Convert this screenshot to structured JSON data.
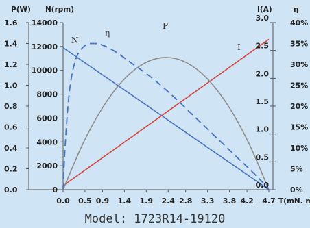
{
  "chart_data": {
    "type": "line",
    "title": "",
    "footer": "Model:  1723R14-19120",
    "x": {
      "label": "T(mN. m)",
      "ticks": [
        0.0,
        0.5,
        0.9,
        1.4,
        1.9,
        2.4,
        2.8,
        3.3,
        3.8,
        4.2,
        4.7
      ],
      "tick_labels": [
        "0.0",
        "0.5",
        "0.9",
        "1.4",
        "1.9",
        "2.4",
        "2.8",
        "3.3",
        "3.8",
        "4.2",
        "4.7"
      ],
      "range": [
        0,
        4.7
      ]
    },
    "axes": {
      "p": {
        "label": "P(W)",
        "range": [
          0,
          1.6
        ],
        "ticks": [
          0.0,
          0.2,
          0.4,
          0.6,
          0.8,
          1.0,
          1.2,
          1.4,
          1.6
        ],
        "tick_labels": [
          "0.0",
          "0.2",
          "0.4",
          "0.6",
          "0.8",
          "1.0",
          "1.2",
          "1.4",
          "1.6"
        ]
      },
      "n": {
        "label": "N(rpm)",
        "range": [
          0,
          14000
        ],
        "ticks": [
          0,
          2000,
          4000,
          6000,
          8000,
          10000,
          12000,
          14000
        ],
        "tick_labels": [
          "0",
          "2000",
          "4000",
          "6000",
          "8000",
          "10000",
          "12000",
          "14000"
        ]
      },
      "i": {
        "label": "I(A)",
        "range": [
          0,
          3.0
        ],
        "ticks": [
          0.0,
          0.5,
          1.0,
          1.5,
          2.0,
          2.5,
          3.0
        ],
        "tick_labels": [
          "0.0",
          "0.5",
          "1.0",
          "1.5",
          "2.0",
          "2.5",
          "3.0"
        ]
      },
      "eta": {
        "label": "η",
        "range": [
          0,
          40
        ],
        "ticks": [
          0,
          5,
          10,
          15,
          20,
          25,
          30,
          35,
          40
        ],
        "tick_labels": [
          "0%",
          "5%",
          "10%",
          "15%",
          "20%",
          "25%",
          "30%",
          "35%",
          "40%"
        ]
      }
    },
    "series": [
      {
        "name": "N",
        "axis": "n",
        "color": "#4472c4",
        "style": "solid",
        "x": [
          0.0,
          4.7
        ],
        "y": [
          11900,
          0
        ]
      },
      {
        "name": "I",
        "axis": "i",
        "color": "#d9443a",
        "style": "solid",
        "x": [
          0.0,
          4.7
        ],
        "y": [
          0.07,
          2.7
        ]
      },
      {
        "name": "P",
        "axis": "p",
        "color": "#8c8c8c",
        "style": "solid",
        "x": [
          0.0,
          0.47,
          0.94,
          1.41,
          1.88,
          2.35,
          2.82,
          3.29,
          3.76,
          4.23,
          4.7
        ],
        "y": [
          0.0,
          0.456,
          0.81,
          1.064,
          1.216,
          1.266,
          1.216,
          1.064,
          0.81,
          0.456,
          0.0
        ]
      },
      {
        "name": "η",
        "axis": "eta",
        "color": "#4472c4",
        "style": "dashed",
        "x": [
          0.0,
          0.05,
          0.15,
          0.3,
          0.5,
          0.7,
          0.9,
          1.2,
          1.6,
          2.0,
          2.5,
          3.0,
          3.5,
          4.0,
          4.3,
          4.5,
          4.7
        ],
        "y": [
          0.0,
          11.0,
          24.0,
          31.5,
          34.5,
          35.0,
          34.6,
          33.0,
          30.0,
          27.0,
          22.5,
          17.5,
          12.5,
          7.5,
          4.5,
          2.4,
          0.0
        ]
      }
    ]
  }
}
